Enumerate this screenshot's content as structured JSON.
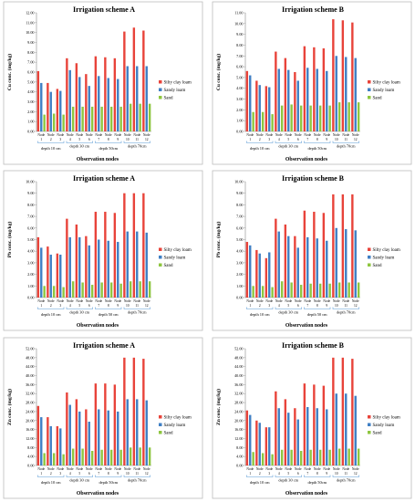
{
  "colors": {
    "silty_clay_loam": "#e8433a",
    "sandy_loam": "#3f7fc4",
    "sand": "#8ec63f",
    "axis": "#888888",
    "bracket": "#5b9bd5"
  },
  "chart_data": [
    {
      "type": "bar",
      "title": "Irrigation scheme  A",
      "ylabel": "Cu  conc. (mg/kg)",
      "xlabel": "Observation nodes",
      "ylim": [
        0,
        12
      ],
      "yticks": [
        "0.00",
        "1.00",
        "2.00",
        "3.00",
        "4.00",
        "5.00",
        "6.00",
        "7.00",
        "8.00",
        "9.00",
        "10.00",
        "11.00",
        "12.00"
      ],
      "categories": [
        "1",
        "2",
        "3",
        "4",
        "5",
        "6",
        "7",
        "8",
        "9",
        "10",
        "11",
        "12"
      ],
      "node_label": "Node",
      "depth_groups": [
        {
          "label": "depth 10 cm",
          "nodes": [
            1,
            3
          ]
        },
        {
          "label": "depth 30 cm",
          "nodes": [
            4,
            6
          ]
        },
        {
          "label": "depth 50cm",
          "nodes": [
            7,
            9
          ]
        },
        {
          "label": "depth 70cm",
          "nodes": [
            10,
            12
          ]
        }
      ],
      "series": [
        {
          "name": "Silty clay loam",
          "values": [
            6.1,
            4.9,
            4.3,
            7.4,
            6.9,
            5.8,
            7.6,
            7.5,
            7.4,
            10.1,
            10.5,
            10.2
          ]
        },
        {
          "name": "Sandy loam",
          "values": [
            4.9,
            4.0,
            4.1,
            6.2,
            5.5,
            4.6,
            5.6,
            5.4,
            5.3,
            6.6,
            6.6,
            6.6
          ]
        },
        {
          "name": "Sand",
          "values": [
            1.7,
            1.8,
            1.7,
            2.5,
            2.5,
            2.5,
            2.5,
            2.5,
            2.5,
            2.8,
            2.8,
            2.8
          ]
        }
      ]
    },
    {
      "type": "bar",
      "title": "Irrigation scheme  B",
      "ylabel": "Cu  conc. (mg/kg)",
      "xlabel": "Observation nodes",
      "ylim": [
        0,
        11
      ],
      "yticks": [
        "0.00",
        "1.00",
        "2.00",
        "3.00",
        "4.00",
        "5.00",
        "6.00",
        "7.00",
        "8.00",
        "9.00",
        "10.00",
        "11.00"
      ],
      "categories": [
        "1",
        "2",
        "3",
        "4",
        "5",
        "6",
        "7",
        "8",
        "9",
        "10",
        "11",
        "12"
      ],
      "node_label": "Node",
      "depth_groups": [
        {
          "label": "depth 10 cm",
          "nodes": [
            1,
            3
          ]
        },
        {
          "label": "depth 30 cm",
          "nodes": [
            4,
            6
          ]
        },
        {
          "label": "depth 50cm",
          "nodes": [
            7,
            9
          ]
        },
        {
          "label": "depth 70cm",
          "nodes": [
            10,
            12
          ]
        }
      ],
      "series": [
        {
          "name": "Silty clay loam",
          "values": [
            5.6,
            4.7,
            4.2,
            7.4,
            6.8,
            5.5,
            7.9,
            7.8,
            7.7,
            10.4,
            10.3,
            10.1
          ]
        },
        {
          "name": "Sandy loam",
          "values": [
            5.2,
            4.3,
            4.1,
            5.8,
            5.7,
            4.7,
            5.9,
            5.8,
            5.6,
            7.0,
            6.9,
            6.8
          ]
        },
        {
          "name": "Sand",
          "values": [
            1.8,
            1.8,
            1.6,
            2.4,
            2.5,
            2.4,
            2.4,
            2.4,
            2.4,
            2.7,
            2.7,
            2.7
          ]
        }
      ]
    },
    {
      "type": "bar",
      "title": "Irrigation scheme A",
      "ylabel": "Pb  conc. (mg/kg)",
      "xlabel": "Observation nodes",
      "ylim": [
        0,
        10
      ],
      "yticks": [
        "0.00",
        "1.00",
        "2.00",
        "3.00",
        "4.00",
        "5.00",
        "6.00",
        "7.00",
        "8.00",
        "9.00",
        "10.00"
      ],
      "categories": [
        "1",
        "2",
        "3",
        "4",
        "5",
        "6",
        "7",
        "8",
        "9",
        "10",
        "11",
        "12"
      ],
      "node_label": "Node",
      "depth_groups": [
        {
          "label": "depth 10 cm",
          "nodes": [
            1,
            3
          ]
        },
        {
          "label": "depth 30 cm",
          "nodes": [
            4,
            6
          ]
        },
        {
          "label": "depth 50 cm",
          "nodes": [
            7,
            9
          ]
        },
        {
          "label": "depth 70cm",
          "nodes": [
            10,
            12
          ]
        }
      ],
      "series": [
        {
          "name": "Silty clay loam",
          "values": [
            5.2,
            4.4,
            3.8,
            6.8,
            6.3,
            5.3,
            7.4,
            7.4,
            7.3,
            9.0,
            9.0,
            9.0
          ]
        },
        {
          "name": "Sandy loam",
          "values": [
            4.3,
            3.7,
            3.7,
            5.2,
            5.2,
            4.5,
            5.0,
            4.9,
            4.8,
            5.7,
            5.7,
            5.6
          ]
        },
        {
          "name": "Sand",
          "values": [
            1.0,
            1.0,
            0.9,
            1.4,
            1.3,
            1.1,
            1.3,
            1.3,
            1.2,
            1.4,
            1.4,
            1.4
          ]
        }
      ]
    },
    {
      "type": "bar",
      "title": "Irrigation scheme B",
      "ylabel": "Pb  conc. (mg/kg)",
      "xlabel": "Observation nodes",
      "ylim": [
        0,
        10
      ],
      "yticks": [
        "0.00",
        "1.00",
        "2.00",
        "3.00",
        "4.00",
        "5.00",
        "6.00",
        "7.00",
        "8.00",
        "9.00",
        "10.00"
      ],
      "categories": [
        "1",
        "2",
        "3",
        "4",
        "5",
        "6",
        "7",
        "8",
        "9",
        "10",
        "11",
        "12"
      ],
      "node_label": "Node",
      "depth_groups": [
        {
          "label": "depth 10 cm",
          "nodes": [
            1,
            3
          ]
        },
        {
          "label": "depth 30 cm",
          "nodes": [
            4,
            6
          ]
        },
        {
          "label": "depth 50 cm",
          "nodes": [
            7,
            9
          ]
        },
        {
          "label": "depth 70cm",
          "nodes": [
            10,
            12
          ]
        }
      ],
      "series": [
        {
          "name": "Silty clay loam",
          "values": [
            4.8,
            4.1,
            3.4,
            6.8,
            6.3,
            5.3,
            7.5,
            7.4,
            7.3,
            8.9,
            8.9,
            8.9
          ]
        },
        {
          "name": "Sandy loam",
          "values": [
            4.5,
            3.8,
            3.9,
            5.7,
            5.3,
            4.3,
            5.2,
            5.1,
            4.9,
            6.0,
            5.9,
            5.8
          ]
        },
        {
          "name": "Sand",
          "values": [
            1.0,
            1.0,
            0.9,
            1.4,
            1.3,
            1.1,
            1.2,
            1.2,
            1.2,
            1.3,
            1.3,
            1.3
          ]
        }
      ]
    },
    {
      "type": "bar",
      "title": "Irrigation scheme A",
      "ylabel": "Zn  conc. (mg/kg)",
      "xlabel": "Observation nodes",
      "ylim": [
        0,
        52
      ],
      "yticks": [
        "0.00",
        "4.00",
        "8.00",
        "12.00",
        "16.00",
        "20.00",
        "24.00",
        "28.00",
        "32.00",
        "36.00",
        "40.00",
        "44.00",
        "48.00",
        "52.00"
      ],
      "categories": [
        "1",
        "2",
        "3",
        "4",
        "5",
        "6",
        "7",
        "8",
        "9",
        "10",
        "11",
        "12"
      ],
      "node_label": "Node",
      "depth_groups": [
        {
          "label": "depth 10 cm",
          "nodes": [
            1,
            3
          ]
        },
        {
          "label": "depth 30 cm",
          "nodes": [
            4,
            6
          ]
        },
        {
          "label": "depth 50cm",
          "nodes": [
            7,
            9
          ]
        },
        {
          "label": "depth 70cm",
          "nodes": [
            10,
            12
          ]
        }
      ],
      "series": [
        {
          "name": "Silty clay loam",
          "values": [
            26.5,
            21.5,
            17.5,
            32.5,
            29.5,
            25.0,
            36.5,
            36.5,
            36.0,
            48.0,
            48.0,
            47.5
          ]
        },
        {
          "name": "Sandy loam",
          "values": [
            21.5,
            17.5,
            16.5,
            27.0,
            24.0,
            19.5,
            25.0,
            24.5,
            24.0,
            29.5,
            29.5,
            29.0
          ]
        },
        {
          "name": "Sand",
          "values": [
            5.5,
            5.5,
            5.0,
            7.5,
            7.5,
            6.5,
            7.0,
            7.0,
            7.0,
            8.0,
            8.0,
            8.0
          ]
        }
      ]
    },
    {
      "type": "bar",
      "title": "Irrigation scheme B",
      "ylabel": "Zn  conc. (mg/kg)",
      "xlabel": "Observation nodes",
      "ylim": [
        0,
        52
      ],
      "yticks": [
        "0.00",
        "4.00",
        "8.00",
        "12.00",
        "16.00",
        "20.00",
        "24.00",
        "28.00",
        "32.00",
        "36.00",
        "40.00",
        "44.00",
        "48.00",
        "52.00"
      ],
      "categories": [
        "1",
        "2",
        "3",
        "4",
        "5",
        "6",
        "7",
        "8",
        "9",
        "10",
        "11",
        "12"
      ],
      "node_label": "Node",
      "depth_groups": [
        {
          "label": "depth 10 cm",
          "nodes": [
            1,
            3
          ]
        },
        {
          "label": "depth 30 cm",
          "nodes": [
            4,
            6
          ]
        },
        {
          "label": "depth 50cm",
          "nodes": [
            7,
            9
          ]
        },
        {
          "label": "depth 70cm",
          "nodes": [
            10,
            12
          ]
        }
      ],
      "series": [
        {
          "name": "Silty clay loam",
          "values": [
            24.5,
            20.0,
            17.0,
            33.0,
            29.5,
            25.5,
            36.5,
            36.0,
            35.5,
            48.0,
            48.0,
            47.5
          ]
        },
        {
          "name": "Sandy loam",
          "values": [
            22.5,
            19.0,
            17.0,
            25.5,
            23.5,
            20.5,
            26.0,
            25.5,
            25.0,
            32.0,
            32.0,
            31.0
          ]
        },
        {
          "name": "Sand",
          "values": [
            6.0,
            5.5,
            5.0,
            7.0,
            7.0,
            6.5,
            7.0,
            7.0,
            7.0,
            7.5,
            7.5,
            7.5
          ]
        }
      ]
    }
  ]
}
